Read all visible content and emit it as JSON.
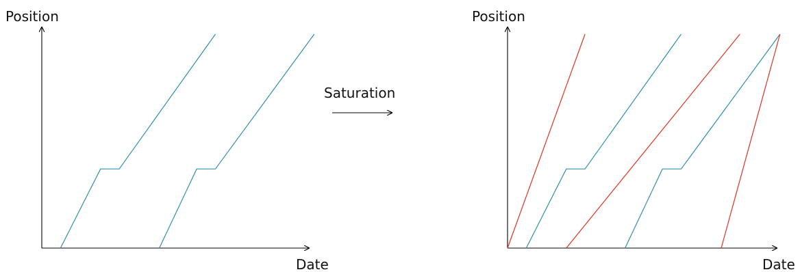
{
  "colors": {
    "axis": "#000000",
    "original_trajectory": "#2e8fae",
    "added_trajectory": "#e0321e"
  },
  "transform_label": "Saturation",
  "panels": [
    {
      "id": "before",
      "y_axis_label": "Position",
      "x_axis_label": "Date",
      "trajectories": [
        {
          "kind": "original",
          "points": [
            [
              0.07,
              0.0
            ],
            [
              0.22,
              0.37
            ],
            [
              0.29,
              0.37
            ],
            [
              0.65,
              1.0
            ]
          ]
        },
        {
          "kind": "original",
          "points": [
            [
              0.44,
              0.0
            ],
            [
              0.58,
              0.37
            ],
            [
              0.65,
              0.37
            ],
            [
              1.02,
              1.0
            ]
          ]
        }
      ]
    },
    {
      "id": "after",
      "y_axis_label": "Position",
      "x_axis_label": "Date",
      "trajectories": [
        {
          "kind": "added",
          "points": [
            [
              0.0,
              0.0
            ],
            [
              0.29,
              1.0
            ]
          ]
        },
        {
          "kind": "original",
          "points": [
            [
              0.07,
              0.0
            ],
            [
              0.22,
              0.37
            ],
            [
              0.29,
              0.37
            ],
            [
              0.65,
              1.0
            ]
          ]
        },
        {
          "kind": "added",
          "points": [
            [
              0.22,
              0.0
            ],
            [
              0.87,
              1.0
            ]
          ]
        },
        {
          "kind": "original",
          "points": [
            [
              0.44,
              0.0
            ],
            [
              0.58,
              0.37
            ],
            [
              0.65,
              0.37
            ],
            [
              1.02,
              1.0
            ]
          ]
        },
        {
          "kind": "added",
          "points": [
            [
              0.8,
              0.0
            ],
            [
              1.02,
              1.0
            ]
          ]
        }
      ]
    }
  ]
}
